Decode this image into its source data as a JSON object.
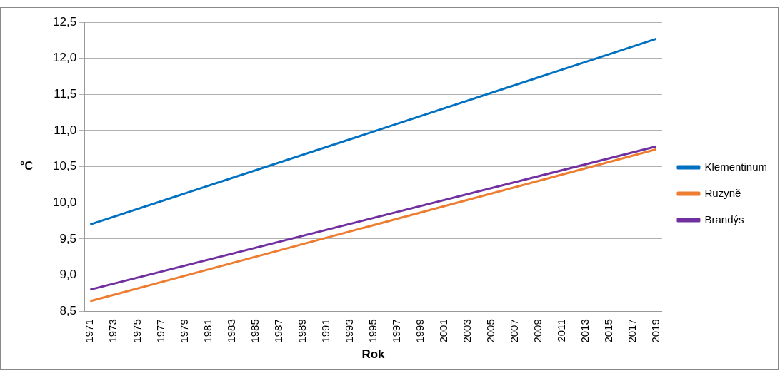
{
  "chart_data": {
    "type": "line",
    "xlabel": "Rok",
    "ylabel": "°C",
    "xlim": [
      1970.5,
      2019.5
    ],
    "xticks": [
      1971,
      1973,
      1975,
      1977,
      1979,
      1981,
      1983,
      1985,
      1987,
      1989,
      1991,
      1993,
      1995,
      1997,
      1999,
      2001,
      2003,
      2005,
      2007,
      2009,
      2011,
      2013,
      2015,
      2017,
      2019
    ],
    "ylim": [
      8.5,
      12.5
    ],
    "yticks": [
      {
        "value": 8.5,
        "label": "8,5"
      },
      {
        "value": 9,
        "label": "9,0"
      },
      {
        "value": 9.5,
        "label": "9,5"
      },
      {
        "value": 10,
        "label": "10,0"
      },
      {
        "value": 10.5,
        "label": "10,5"
      },
      {
        "value": 11,
        "label": "11,0"
      },
      {
        "value": 11.5,
        "label": "11,5"
      },
      {
        "value": 12,
        "label": "12,0"
      },
      {
        "value": 12.5,
        "label": "12,5"
      }
    ],
    "x": [
      1971,
      2019
    ],
    "grid": "y",
    "legend": "right",
    "marker": "none",
    "line_style": "solid",
    "series": [
      {
        "name": "Klementinum",
        "color": "#0070c0",
        "values": [
          9.7,
          12.27
        ]
      },
      {
        "name": "Ruzyně",
        "color": "#ed7d31",
        "values": [
          8.64,
          10.74
        ]
      },
      {
        "name": "Brandýs",
        "color": "#7030a0",
        "values": [
          8.8,
          10.78
        ]
      }
    ]
  }
}
